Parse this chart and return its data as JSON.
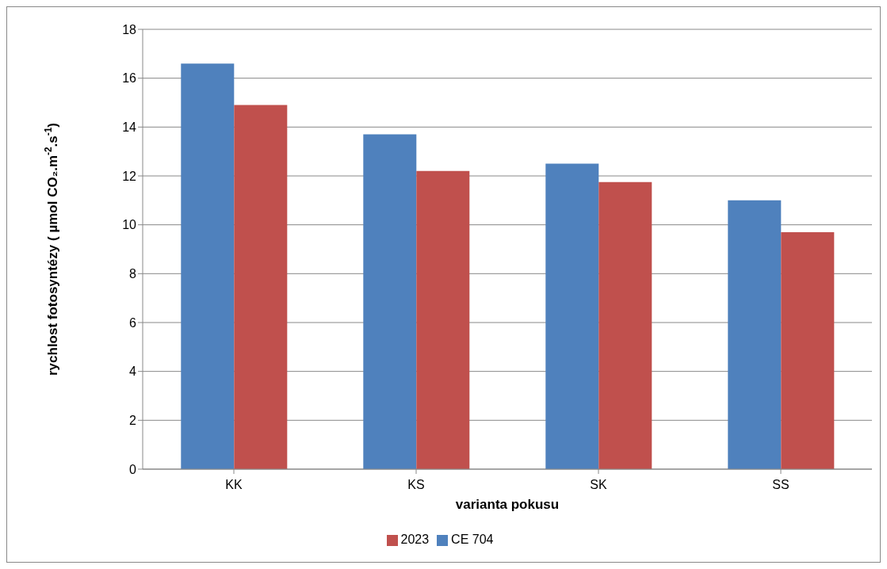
{
  "chart_data": {
    "type": "bar",
    "xlabel": "varianta pokusu",
    "ylabel": "rychlost fotosyntézy ( µmol CO₂.m$^{-2}$.s$^{-1}$)",
    "categories": [
      "KK",
      "KS",
      "SK",
      "SS"
    ],
    "series": [
      {
        "name": "CE 704",
        "color": "#4f81bd",
        "values": [
          16.6,
          13.7,
          12.5,
          11.0
        ]
      },
      {
        "name": "2023",
        "color": "#c0504d",
        "values": [
          14.9,
          12.2,
          11.75,
          9.7
        ]
      }
    ],
    "ylim": [
      0,
      18
    ],
    "yticks": [
      0,
      2,
      4,
      6,
      8,
      10,
      12,
      14,
      16,
      18
    ],
    "grid": "y",
    "legend": "bottom"
  }
}
